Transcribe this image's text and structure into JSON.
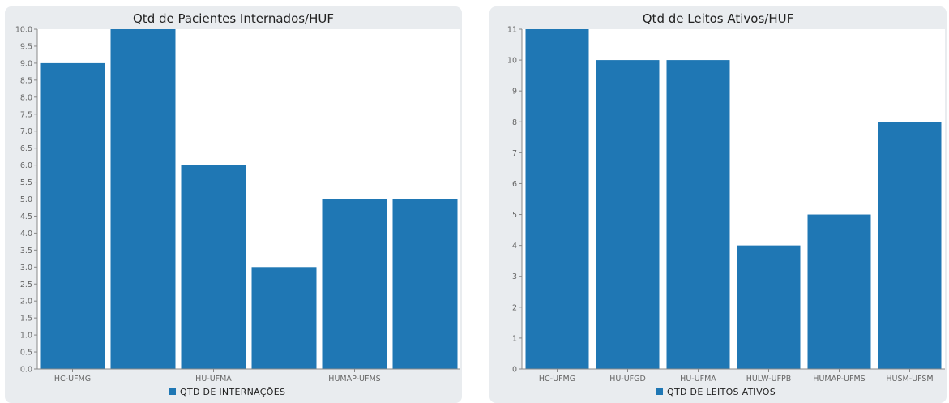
{
  "chart_data": [
    {
      "type": "bar",
      "title": "Qtd de Pacientes Internados/HUF",
      "categories": [
        "HC-UFMG",
        "·",
        "HU-UFMA",
        "·",
        "HUMAP-UFMS",
        "·"
      ],
      "values": [
        9.0,
        10.0,
        6.0,
        3.0,
        5.0,
        5.0
      ],
      "series_name": "QTD DE INTERNAÇÕES",
      "ylim": [
        0,
        10
      ],
      "ytick_step": 0.5,
      "ytick_decimals": 1,
      "bar_color": "#1f77b4",
      "grid": false,
      "legend_position": "bottom-center"
    },
    {
      "type": "bar",
      "title": "Qtd de Leitos Ativos/HUF",
      "categories": [
        "HC-UFMG",
        "HU-UFGD",
        "HU-UFMA",
        "HULW-UFPB",
        "HUMAP-UFMS",
        "HUSM-UFSM"
      ],
      "values": [
        11,
        10,
        10,
        4,
        5,
        8
      ],
      "series_name": "QTD DE LEITOS ATIVOS",
      "ylim": [
        0,
        11
      ],
      "ytick_step": 1,
      "ytick_decimals": 0,
      "bar_color": "#1f77b4",
      "grid": false,
      "legend_position": "bottom-center"
    }
  ],
  "colors": {
    "panel_bg": "#e9ecef",
    "plot_bg": "#ffffff",
    "axis": "#888888",
    "bar": "#1f77b4"
  }
}
